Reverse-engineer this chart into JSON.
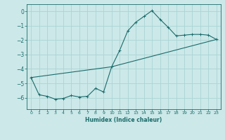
{
  "xlabel": "Humidex (Indice chaleur)",
  "xlim": [
    -0.5,
    23.5
  ],
  "ylim": [
    -6.8,
    0.5
  ],
  "background_color": "#cce8e8",
  "grid_color": "#aad4d4",
  "line_color": "#1a6b6b",
  "line1_x": [
    0,
    1,
    2,
    3,
    4,
    5,
    6,
    7,
    8,
    9,
    10,
    11,
    12,
    13,
    14,
    15,
    16,
    17,
    18,
    19,
    20,
    21,
    22,
    23
  ],
  "line1_y": [
    -4.6,
    -5.8,
    -5.9,
    -6.1,
    -6.05,
    -5.85,
    -5.95,
    -5.9,
    -5.35,
    -5.6,
    -3.85,
    -2.7,
    -1.35,
    -0.75,
    -0.35,
    0.05,
    -0.55,
    -1.1,
    -1.7,
    -1.65,
    -1.6,
    -1.6,
    -1.65,
    -1.95
  ],
  "line2_x": [
    0,
    10,
    23
  ],
  "line2_y": [
    -4.6,
    -3.85,
    -1.95
  ],
  "yticks": [
    0,
    -1,
    -2,
    -3,
    -4,
    -5,
    -6
  ],
  "xticks": [
    0,
    1,
    2,
    3,
    4,
    5,
    6,
    7,
    8,
    9,
    10,
    11,
    12,
    13,
    14,
    15,
    16,
    17,
    18,
    19,
    20,
    21,
    22,
    23
  ]
}
